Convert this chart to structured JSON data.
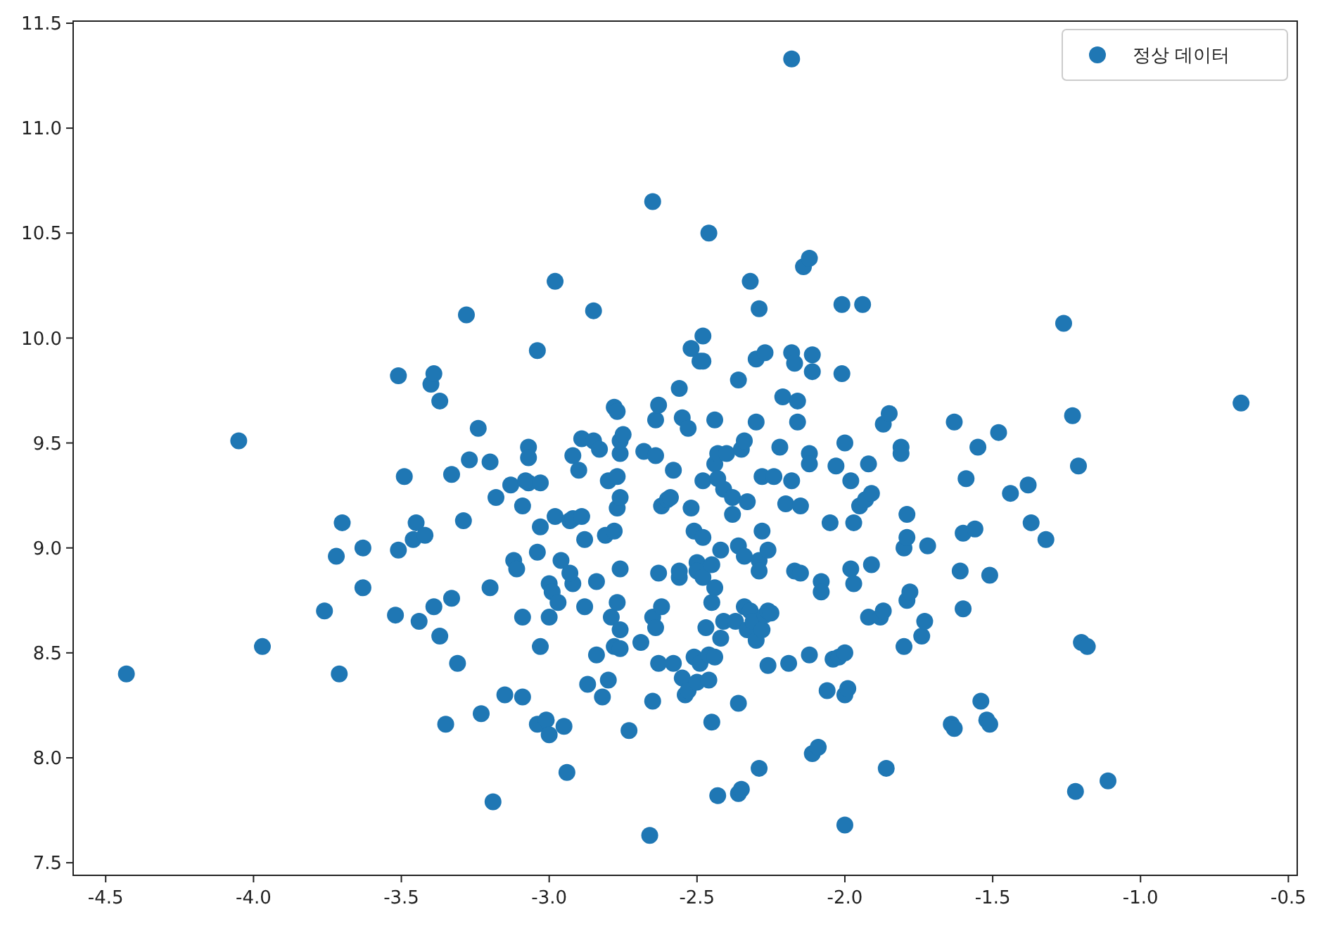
{
  "chart_data": {
    "type": "scatter",
    "xlim": [
      -4.61,
      -0.47
    ],
    "ylim": [
      7.44,
      11.51
    ],
    "xticks": [
      -4.5,
      {
        "value": -4,
        "label": "-4.0"
      },
      -3.5,
      {
        "value": -3,
        "label": "-3.0"
      },
      -2.5,
      {
        "value": -2,
        "label": "-2.0"
      },
      -1.5,
      {
        "value": -1,
        "label": "-1.0"
      },
      -0.5
    ],
    "yticks": [
      7.5,
      {
        "value": 8,
        "label": "8.0"
      },
      8.5,
      {
        "value": 9,
        "label": "9.0"
      },
      9.5,
      {
        "value": 10,
        "label": "10.0"
      },
      10.5,
      {
        "value": 11,
        "label": "11.0"
      },
      11.5
    ],
    "legend": "top right",
    "marker": "circle",
    "grid": false,
    "series": [
      {
        "name": "정상 데이터",
        "color": "#1f77b4",
        "x": [
          -4.43,
          -4.05,
          -3.97,
          -3.76,
          -3.7,
          -3.72,
          -3.71,
          -3.63,
          -3.63,
          -3.52,
          -3.51,
          -3.49,
          -3.51,
          -3.46,
          -3.45,
          -3.44,
          -3.42,
          -3.4,
          -3.39,
          -3.37,
          -3.39,
          -3.37,
          -3.35,
          -3.33,
          -3.33,
          -3.31,
          -3.28,
          -3.27,
          -3.29,
          -3.24,
          -3.23,
          -3.2,
          -3.2,
          -3.19,
          -3.18,
          -3.15,
          -3.13,
          -3.12,
          -3.11,
          -3.09,
          -3.09,
          -3.09,
          -3.07,
          -3.07,
          -3.07,
          -3.08,
          -3.04,
          -3.04,
          -3.03,
          -3.03,
          -3.04,
          -3.03,
          -3.01,
          -3.0,
          -3.0,
          -3.0,
          -2.99,
          -2.98,
          -2.98,
          -2.96,
          -2.97,
          -2.95,
          -2.94,
          -2.93,
          -2.92,
          -2.93,
          -2.92,
          -2.92,
          -2.9,
          -2.89,
          -2.89,
          -2.88,
          -2.88,
          -2.87,
          -2.85,
          -2.85,
          -2.84,
          -2.84,
          -2.83,
          -2.82,
          -2.81,
          -2.8,
          -2.8,
          -2.79,
          -2.78,
          -2.78,
          -2.78,
          -2.77,
          -2.77,
          -2.77,
          -2.76,
          -2.76,
          -2.76,
          -2.77,
          -2.76,
          -2.76,
          -2.76,
          -2.75,
          -2.73,
          -2.69,
          -2.68,
          -2.65,
          -2.65,
          -2.65,
          -2.66,
          -2.64,
          -2.64,
          -2.64,
          -2.63,
          -2.63,
          -2.63,
          -2.62,
          -2.62,
          -2.6,
          -2.59,
          -2.58,
          -2.58,
          -2.56,
          -2.56,
          -2.56,
          -2.55,
          -2.55,
          -2.54,
          -2.53,
          -2.53,
          -2.52,
          -2.52,
          -2.51,
          -2.51,
          -2.5,
          -2.5,
          -2.5,
          -2.49,
          -2.49,
          -2.48,
          -2.48,
          -2.48,
          -2.48,
          -2.48,
          -2.47,
          -2.46,
          -2.46,
          -2.46,
          -2.45,
          -2.45,
          -2.45,
          -2.44,
          -2.44,
          -2.44,
          -2.44,
          -2.43,
          -2.43,
          -2.43,
          -2.42,
          -2.42,
          -2.41,
          -2.41,
          -2.4,
          -2.38,
          -2.38,
          -2.37,
          -2.36,
          -2.36,
          -2.36,
          -2.36,
          -2.35,
          -2.35,
          -2.34,
          -2.34,
          -2.34,
          -2.33,
          -2.33,
          -2.32,
          -2.32,
          -2.31,
          -2.3,
          -2.3,
          -2.3,
          -2.29,
          -2.29,
          -2.29,
          -2.29,
          -2.28,
          -2.28,
          -2.28,
          -2.27,
          -2.26,
          -2.27,
          -2.26,
          -2.26,
          -2.25,
          -2.24,
          -2.22,
          -2.21,
          -2.2,
          -2.19,
          -2.18,
          -2.18,
          -2.18,
          -2.17,
          -2.17,
          -2.16,
          -2.16,
          -2.15,
          -2.15,
          -2.14,
          -2.12,
          -2.12,
          -2.12,
          -2.12,
          -2.11,
          -2.11,
          -2.11,
          -2.09,
          -2.08,
          -2.08,
          -2.06,
          -2.05,
          -2.04,
          -2.03,
          -2.02,
          -2.01,
          -2.01,
          -2.0,
          -2.0,
          -2.0,
          -2.0,
          -1.99,
          -1.98,
          -1.98,
          -1.97,
          -1.97,
          -1.95,
          -1.94,
          -1.93,
          -1.92,
          -1.92,
          -1.91,
          -1.91,
          -1.88,
          -1.87,
          -1.87,
          -1.86,
          -1.85,
          -1.81,
          -1.81,
          -1.8,
          -1.8,
          -1.79,
          -1.79,
          -1.79,
          -1.78,
          -1.74,
          -1.73,
          -1.72,
          -1.64,
          -1.63,
          -1.63,
          -1.61,
          -1.6,
          -1.6,
          -1.59,
          -1.56,
          -1.55,
          -1.54,
          -1.52,
          -1.51,
          -1.51,
          -1.48,
          -1.44,
          -1.38,
          -1.37,
          -1.32,
          -1.26,
          -1.23,
          -1.22,
          -1.21,
          -1.2,
          -1.18,
          -1.11,
          -0.66
        ],
        "values": [
          8.4,
          9.51,
          8.53,
          8.7,
          9.12,
          8.96,
          8.4,
          9.0,
          8.81,
          8.68,
          9.82,
          9.34,
          8.99,
          9.04,
          9.12,
          8.65,
          9.06,
          9.78,
          9.83,
          9.7,
          8.72,
          8.58,
          8.16,
          8.76,
          9.35,
          8.45,
          10.11,
          9.42,
          9.13,
          9.57,
          8.21,
          8.81,
          9.41,
          7.79,
          9.24,
          8.3,
          9.3,
          8.94,
          8.9,
          8.29,
          8.67,
          9.2,
          9.31,
          9.48,
          9.43,
          9.32,
          8.98,
          9.94,
          9.31,
          9.1,
          8.16,
          8.53,
          8.18,
          8.11,
          8.83,
          8.67,
          8.79,
          10.27,
          9.15,
          8.94,
          8.74,
          8.15,
          7.93,
          9.13,
          8.83,
          8.88,
          9.44,
          9.14,
          9.37,
          9.15,
          9.52,
          8.72,
          9.04,
          8.35,
          9.51,
          10.13,
          8.84,
          8.49,
          9.47,
          8.29,
          9.06,
          8.37,
          9.32,
          8.67,
          8.53,
          9.08,
          9.67,
          9.65,
          9.19,
          9.34,
          8.9,
          9.45,
          9.51,
          8.74,
          8.61,
          8.52,
          9.24,
          9.54,
          8.13,
          8.55,
          9.46,
          10.65,
          8.67,
          8.27,
          7.63,
          8.62,
          9.44,
          9.61,
          9.68,
          8.88,
          8.45,
          9.2,
          8.72,
          9.23,
          9.24,
          9.37,
          8.45,
          9.76,
          8.86,
          8.89,
          9.62,
          8.38,
          8.3,
          9.57,
          8.32,
          9.19,
          9.95,
          9.08,
          8.48,
          8.93,
          8.89,
          8.36,
          8.45,
          9.89,
          9.89,
          9.05,
          8.86,
          10.01,
          9.32,
          8.62,
          8.49,
          10.5,
          8.37,
          8.17,
          8.92,
          8.74,
          8.48,
          9.4,
          9.61,
          8.81,
          7.82,
          9.33,
          9.45,
          8.99,
          8.57,
          9.28,
          8.65,
          9.45,
          9.24,
          9.16,
          8.65,
          8.26,
          7.83,
          9.8,
          9.01,
          9.47,
          7.85,
          8.72,
          9.51,
          8.96,
          9.22,
          8.61,
          8.7,
          10.27,
          8.65,
          9.9,
          8.56,
          9.6,
          8.94,
          8.89,
          10.14,
          7.95,
          8.61,
          9.34,
          9.08,
          8.68,
          8.7,
          9.93,
          8.99,
          8.44,
          8.69,
          9.34,
          9.48,
          9.72,
          9.21,
          8.45,
          11.33,
          9.93,
          9.32,
          9.88,
          8.89,
          9.6,
          9.7,
          9.2,
          8.88,
          10.34,
          9.45,
          10.38,
          8.49,
          9.4,
          8.02,
          9.92,
          9.84,
          8.05,
          8.84,
          8.79,
          8.32,
          9.12,
          8.47,
          9.39,
          8.48,
          9.83,
          10.16,
          8.3,
          7.68,
          9.5,
          8.5,
          8.33,
          8.9,
          9.32,
          8.83,
          9.12,
          9.2,
          10.16,
          9.23,
          8.67,
          9.4,
          9.26,
          8.92,
          8.67,
          9.59,
          8.7,
          7.95,
          9.64,
          9.48,
          9.45,
          8.53,
          9.0,
          9.16,
          9.05,
          8.75,
          8.79,
          8.58,
          8.65,
          9.01,
          8.16,
          8.14,
          9.6,
          8.89,
          8.71,
          9.07,
          9.33,
          9.09,
          9.48,
          8.27,
          8.18,
          8.16,
          8.87,
          9.55,
          9.26,
          9.3,
          9.12,
          9.04,
          10.07,
          9.63,
          7.84,
          9.39,
          8.55,
          8.53,
          7.89,
          9.69
        ]
      }
    ]
  }
}
